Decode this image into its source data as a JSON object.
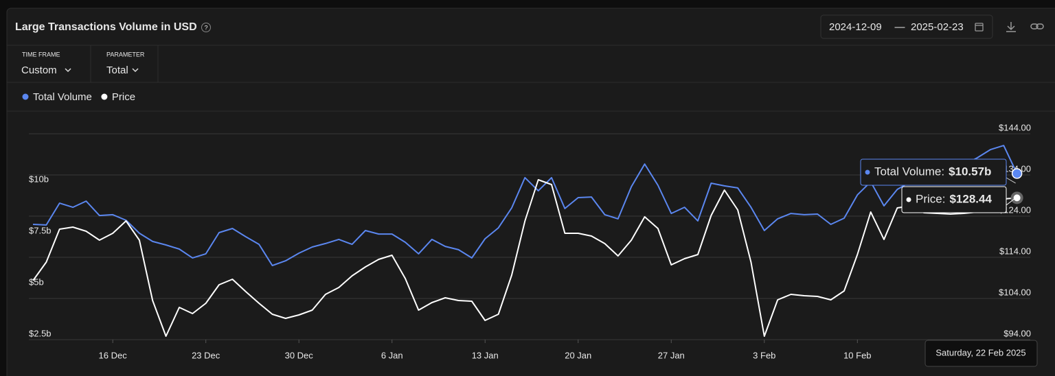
{
  "header": {
    "title": "Large Transactions Volume in USD",
    "date_from": "2024-12-09",
    "date_separator": "—",
    "date_to": "2025-02-23"
  },
  "filters": [
    {
      "label": "TIME FRAME",
      "value": "Custom"
    },
    {
      "label": "PARAMETER",
      "value": "Total"
    }
  ],
  "chart_data": {
    "type": "line",
    "categories": [
      null,
      null,
      null,
      null,
      null,
      null,
      "16 Dec",
      null,
      null,
      null,
      null,
      null,
      null,
      "23 Dec",
      null,
      null,
      null,
      null,
      null,
      null,
      "30 Dec",
      null,
      null,
      null,
      null,
      null,
      null,
      "6 Jan",
      null,
      null,
      null,
      null,
      null,
      null,
      "13 Jan",
      null,
      null,
      null,
      null,
      null,
      null,
      "20 Jan",
      null,
      null,
      null,
      null,
      null,
      null,
      "27 Jan",
      null,
      null,
      null,
      null,
      null,
      null,
      "3 Feb",
      null,
      null,
      null,
      null,
      null,
      null,
      "10 Feb",
      null,
      null,
      null,
      null,
      null,
      null,
      null,
      null,
      null,
      null,
      null,
      null
    ],
    "series": [
      {
        "name": "Total Volume",
        "color": "#5b87f0",
        "values": [
          8.1,
          8.07,
          9.13,
          8.93,
          9.23,
          8.53,
          8.57,
          8.3,
          7.67,
          7.27,
          7.1,
          6.9,
          6.47,
          6.67,
          7.7,
          7.9,
          7.5,
          7.13,
          6.1,
          6.33,
          6.7,
          7.0,
          7.17,
          7.37,
          7.13,
          7.8,
          7.63,
          7.63,
          7.23,
          6.67,
          7.37,
          7.03,
          6.87,
          6.47,
          7.4,
          7.93,
          8.9,
          10.37,
          9.73,
          10.37,
          8.87,
          9.4,
          9.43,
          8.57,
          8.37,
          9.93,
          11.03,
          10.0,
          8.63,
          8.93,
          8.27,
          10.1,
          9.97,
          9.87,
          8.93,
          7.8,
          8.37,
          8.63,
          8.57,
          8.6,
          8.1,
          8.4,
          9.53,
          10.17,
          9.0,
          9.8,
          10.17,
          10.27,
          10.4,
          10.67,
          11.0,
          11.33,
          11.73,
          11.93,
          10.57
        ]
      },
      {
        "name": "Price",
        "color": "#ffffff",
        "axis": "y2",
        "values": [
          108.33,
          112.83,
          120.83,
          121.33,
          120.33,
          118.17,
          119.83,
          122.83,
          118.17,
          103.5,
          94.83,
          101.83,
          100.33,
          102.83,
          107.33,
          108.67,
          105.67,
          102.83,
          100.17,
          99.17,
          100.0,
          101.17,
          105.0,
          106.67,
          109.5,
          111.67,
          113.5,
          114.5,
          108.83,
          101.17,
          103.0,
          104.17,
          103.5,
          103.33,
          98.67,
          100.17,
          109.67,
          122.83,
          132.83,
          131.67,
          119.83,
          119.83,
          119.17,
          117.33,
          114.33,
          118.17,
          123.83,
          121.0,
          112.17,
          113.67,
          114.67,
          124.17,
          130.33,
          125.5,
          112.83,
          94.83,
          103.67,
          105.0,
          104.67,
          104.5,
          103.67,
          105.83,
          114.67,
          125.0,
          118.33,
          126.0,
          126.5,
          124.83,
          124.67,
          124.5,
          124.67,
          125.0,
          126.5,
          128.17,
          128.44
        ]
      }
    ],
    "ylim": [
      2.5,
      12.5
    ],
    "yticks": [
      {
        "value": 2.5,
        "label": "$2.5b"
      },
      {
        "value": 5,
        "label": "$5b"
      },
      {
        "value": 7.5,
        "label": "$7.5b"
      },
      {
        "value": 10,
        "label": "$10b"
      }
    ],
    "y2lim": [
      94,
      144
    ],
    "y2ticks": [
      {
        "value": 94,
        "label": "$94.00"
      },
      {
        "value": 104,
        "label": "$104.00"
      },
      {
        "value": 114,
        "label": "$114.00"
      },
      {
        "value": 124,
        "label": "$124.00"
      },
      {
        "value": 134,
        "label": "$134.00"
      },
      {
        "value": 144,
        "label": "$144.00"
      }
    ],
    "grid": true,
    "tooltip": {
      "date": "Saturday, 22 Feb 2025",
      "items": [
        {
          "series": 0,
          "label": "Total Volume:",
          "value_label": "$10.57b"
        },
        {
          "series": 1,
          "label": "Price:",
          "value_label": "$128.44"
        }
      ]
    }
  }
}
